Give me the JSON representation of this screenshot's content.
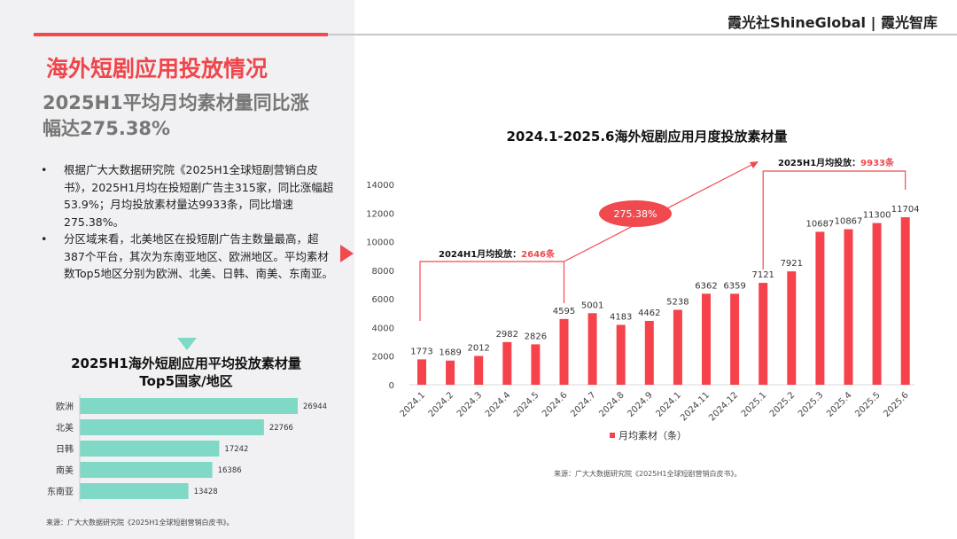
{
  "header": {
    "logo": "霞光社ShineGlobal | 霞光智库",
    "accent": "#f04a4f"
  },
  "title": "海外短剧应用投放情况",
  "subtitle": "2025H1平均月均素材量同比涨幅达275.38%",
  "bullets": [
    "根据广大大数据研究院《2025H1全球短剧营销白皮书》，2025H1月均在投短剧广告主315家，同比涨幅超53.9%；月均投放素材量达9933条，同比增速275.38%。",
    "分区域来看，北美地区在投短剧广告主数量最高，超387个平台，其次为东南亚地区、欧洲地区。平均素材数Top5地区分别为欧洲、北美、日韩、南美、东南亚。"
  ],
  "source_left": "来源：广大大数据研究院《2025H1全球短剧营销白皮书》。",
  "source_right": "来源：广大大数据研究院《2025H1全球短剧营销白皮书》。",
  "chart_data": [
    {
      "type": "bar",
      "title": "2024.1-2025.6海外短剧应用月度投放素材量",
      "categories": [
        "2024.1",
        "2024.2",
        "2024.3",
        "2024.4",
        "2024.5",
        "2024.6",
        "2024.7",
        "2024.8",
        "2024.9",
        "2024.1",
        "2024.11",
        "2024.12",
        "2025.1",
        "2025.2",
        "2025.3",
        "2025.4",
        "2025.5",
        "2025.6"
      ],
      "series": [
        {
          "name": "月均素材（条）",
          "values": [
            1773,
            1689,
            2012,
            2982,
            2826,
            4595,
            5001,
            4183,
            4462,
            5238,
            6362,
            6359,
            7121,
            7921,
            10687,
            10867,
            11300,
            11704
          ],
          "color": "#f5424b"
        }
      ],
      "ylim": [
        0,
        14000
      ],
      "yticks": [
        0,
        2000,
        4000,
        6000,
        8000,
        10000,
        12000,
        14000
      ],
      "grid": false,
      "legend": "bottom",
      "annotations": {
        "h1_2024_label": "2024H1月均投放：",
        "h1_2024_value": "2646条",
        "h1_2025_label": "2025H1月均投放：",
        "h1_2025_value": "9933条",
        "growth": "275.38%"
      }
    },
    {
      "type": "bar",
      "orientation": "horizontal",
      "title": "2025H1海外短剧应用平均投放素材量 Top5国家/地区",
      "title_lines": [
        "2025H1海外短剧应用平均投放素材量",
        "Top5国家/地区"
      ],
      "categories": [
        "欧洲",
        "北美",
        "日韩",
        "南美",
        "东南亚"
      ],
      "values": [
        26944,
        22766,
        17242,
        16386,
        13428
      ],
      "color": "#7fd9c6",
      "xlim": [
        0,
        26944
      ]
    }
  ]
}
